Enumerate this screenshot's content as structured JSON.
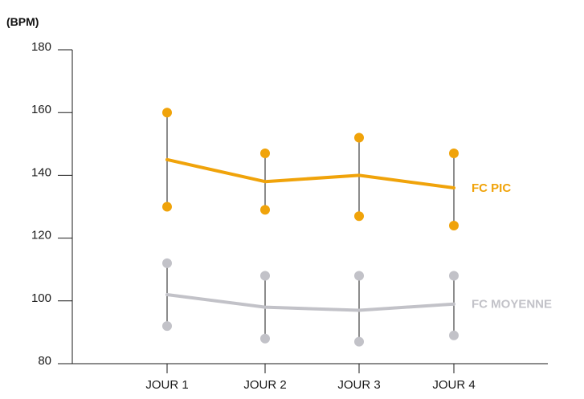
{
  "chart_data": {
    "type": "line",
    "ylabel": "(BPM)",
    "categories": [
      "JOUR 1",
      "JOUR 2",
      "JOUR 3",
      "JOUR 4"
    ],
    "yticks": [
      80,
      100,
      120,
      140,
      160,
      180
    ],
    "ylim": [
      80,
      180
    ],
    "grid": false,
    "series": [
      {
        "name": "FC PIC",
        "color": "#f0a30a",
        "values": [
          145,
          138,
          140,
          136
        ],
        "high": [
          160,
          147,
          152,
          147
        ],
        "low": [
          130,
          129,
          127,
          124
        ]
      },
      {
        "name": "FC MOYENNE",
        "color": "#c2c2c8",
        "values": [
          102,
          98,
          97,
          99
        ],
        "high": [
          112,
          108,
          108,
          108
        ],
        "low": [
          92,
          88,
          87,
          89
        ]
      }
    ]
  }
}
